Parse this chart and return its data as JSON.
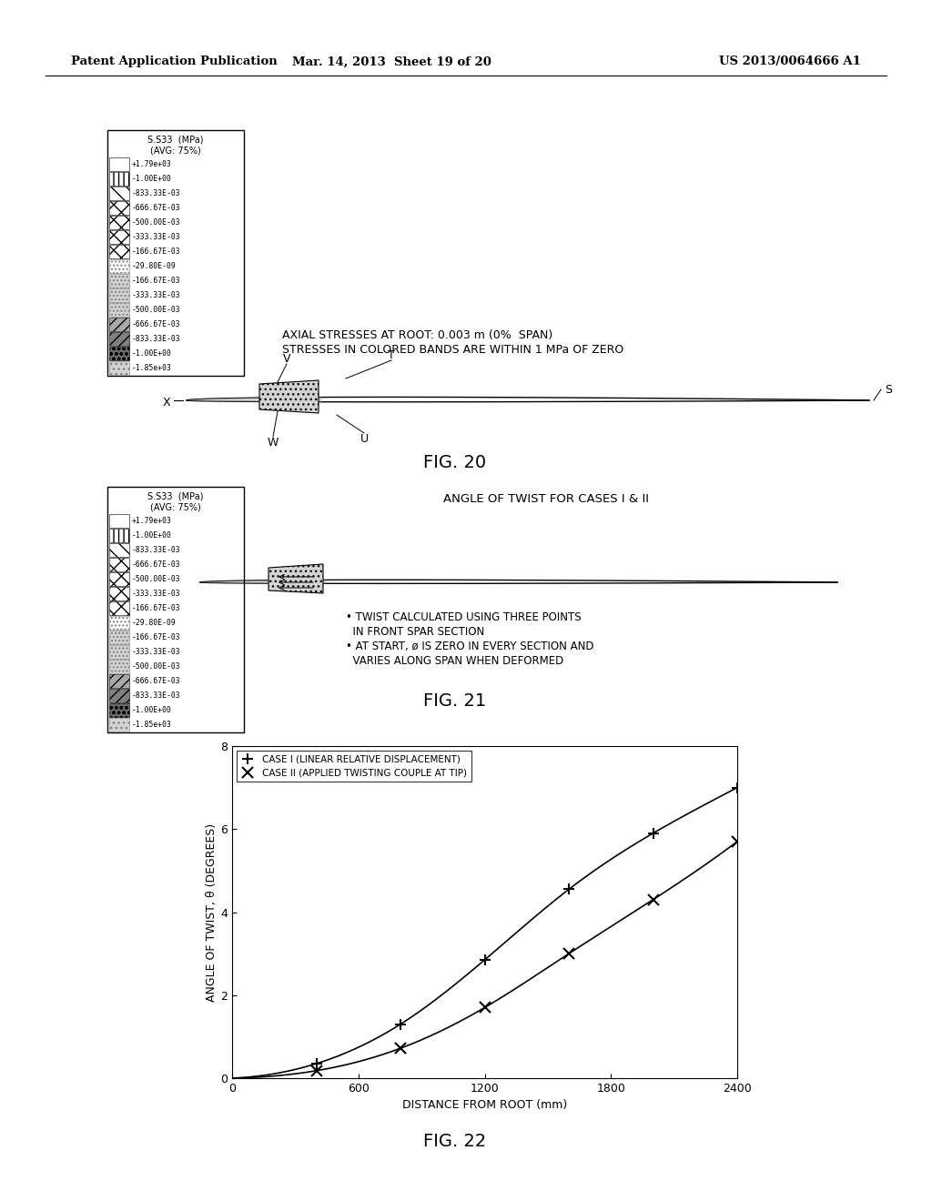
{
  "header_left": "Patent Application Publication",
  "header_center": "Mar. 14, 2013  Sheet 19 of 20",
  "header_right": "US 2013/0064666 A1",
  "bg_color": "#ffffff",
  "legend_values": [
    "+1.79e+03",
    "-1.00E+00",
    "-833.33E-03",
    "-666.67E-03",
    "-500.00E-03",
    "-333.33E-03",
    "-166.67E-03",
    "-29.80E-09",
    "-166.67E-03",
    "-333.33E-03",
    "-500.00E-03",
    "-666.67E-03",
    "-833.33E-03",
    "-1.00E+00",
    "-1.85e+03"
  ],
  "fig20_annotation_line1": "AXIAL STRESSES AT ROOT: 0.003 m (0%  SPAN)",
  "fig20_annotation_line2": "STRESSES IN COLORED BANDS ARE WITHIN 1 MPa OF ZERO",
  "fig20_label": "FIG. 20",
  "fig21_label": "FIG. 21",
  "fig21_annotation1": "• TWIST CALCULATED USING THREE POINTS",
  "fig21_annotation2": "  IN FRONT SPAR SECTION",
  "fig21_annotation3": "• AT START, ø IS ZERO IN EVERY SECTION AND",
  "fig21_annotation4": "  VARIES ALONG SPAN WHEN DEFORMED",
  "fig21_title": "ANGLE OF TWIST FOR CASES I & II",
  "fig22_label": "FIG. 22",
  "fig22_xlabel": "DISTANCE FROM ROOT (mm)",
  "fig22_ylabel": "ANGLE OF TWIST, θ (DEGREES)",
  "fig22_xlim": [
    0,
    2400
  ],
  "fig22_ylim": [
    0,
    8
  ],
  "fig22_xticks": [
    0,
    600,
    1200,
    1800,
    2400
  ],
  "fig22_yticks": [
    0,
    2,
    4,
    6,
    8
  ],
  "case1_x": [
    0,
    400,
    800,
    1200,
    1600,
    2000,
    2400
  ],
  "case1_y": [
    0,
    0.35,
    1.3,
    2.85,
    4.55,
    5.9,
    7.0
  ],
  "case2_x": [
    0,
    400,
    800,
    1200,
    1600,
    2000,
    2400
  ],
  "case2_y": [
    0,
    0.18,
    0.72,
    1.7,
    3.0,
    4.3,
    5.7
  ],
  "case1_label": "CASE I (LINEAR RELATIVE DISPLACEMENT)",
  "case2_label": "CASE II (APPLIED TWISTING COUPLE AT TIP)",
  "line_color": "#000000"
}
